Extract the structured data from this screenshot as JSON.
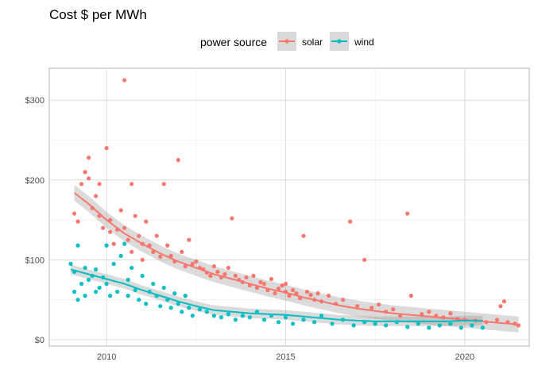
{
  "chart_data": {
    "type": "scatter",
    "title": "Cost $ per MWh",
    "xlabel": "",
    "ylabel": "",
    "xlim": [
      2008.4,
      2021.8
    ],
    "ylim": [
      -8,
      340
    ],
    "x_ticks": [
      2010,
      2015,
      2020
    ],
    "x_tick_labels": [
      "2010",
      "2015",
      "2020"
    ],
    "y_ticks": [
      0,
      100,
      200,
      300
    ],
    "y_tick_labels": [
      "$0",
      "$100",
      "$200",
      "$300"
    ],
    "grid": true,
    "legend": {
      "title": "power source",
      "position": "top"
    },
    "series": [
      {
        "name": "solar",
        "color": "#F8766D",
        "points": [
          [
            2009.1,
            158
          ],
          [
            2009.2,
            148
          ],
          [
            2009.3,
            195
          ],
          [
            2009.4,
            210
          ],
          [
            2009.5,
            228
          ],
          [
            2009.5,
            202
          ],
          [
            2009.6,
            165
          ],
          [
            2009.7,
            180
          ],
          [
            2009.8,
            195
          ],
          [
            2009.8,
            155
          ],
          [
            2009.9,
            140
          ],
          [
            2010.0,
            240
          ],
          [
            2010.1,
            135
          ],
          [
            2010.1,
            150
          ],
          [
            2010.2,
            120
          ],
          [
            2010.3,
            138
          ],
          [
            2010.4,
            162
          ],
          [
            2010.5,
            325
          ],
          [
            2010.5,
            140
          ],
          [
            2010.6,
            125
          ],
          [
            2010.7,
            195
          ],
          [
            2010.7,
            110
          ],
          [
            2010.8,
            155
          ],
          [
            2010.9,
            130
          ],
          [
            2011.0,
            120
          ],
          [
            2011.0,
            100
          ],
          [
            2011.1,
            148
          ],
          [
            2011.2,
            118
          ],
          [
            2011.3,
            110
          ],
          [
            2011.4,
            130
          ],
          [
            2011.5,
            104
          ],
          [
            2011.6,
            195
          ],
          [
            2011.7,
            118
          ],
          [
            2011.8,
            105
          ],
          [
            2011.9,
            98
          ],
          [
            2012.0,
            225
          ],
          [
            2012.1,
            110
          ],
          [
            2012.2,
            92
          ],
          [
            2012.3,
            125
          ],
          [
            2012.4,
            95
          ],
          [
            2012.5,
            98
          ],
          [
            2012.6,
            90
          ],
          [
            2012.7,
            88
          ],
          [
            2012.8,
            84
          ],
          [
            2012.9,
            80
          ],
          [
            2013.0,
            92
          ],
          [
            2013.1,
            85
          ],
          [
            2013.2,
            78
          ],
          [
            2013.3,
            82
          ],
          [
            2013.4,
            90
          ],
          [
            2013.5,
            152
          ],
          [
            2013.6,
            80
          ],
          [
            2013.7,
            75
          ],
          [
            2013.8,
            72
          ],
          [
            2013.9,
            78
          ],
          [
            2014.0,
            68
          ],
          [
            2014.1,
            80
          ],
          [
            2014.2,
            65
          ],
          [
            2014.3,
            72
          ],
          [
            2014.4,
            70
          ],
          [
            2014.5,
            62
          ],
          [
            2014.6,
            76
          ],
          [
            2014.7,
            58
          ],
          [
            2014.8,
            64
          ],
          [
            2014.9,
            68
          ],
          [
            2015.0,
            60
          ],
          [
            2015.0,
            70
          ],
          [
            2015.1,
            55
          ],
          [
            2015.2,
            62
          ],
          [
            2015.3,
            58
          ],
          [
            2015.4,
            52
          ],
          [
            2015.5,
            130
          ],
          [
            2015.6,
            60
          ],
          [
            2015.7,
            56
          ],
          [
            2015.8,
            50
          ],
          [
            2015.9,
            58
          ],
          [
            2016.0,
            48
          ],
          [
            2016.2,
            55
          ],
          [
            2016.4,
            45
          ],
          [
            2016.6,
            50
          ],
          [
            2016.8,
            148
          ],
          [
            2017.0,
            42
          ],
          [
            2017.2,
            100
          ],
          [
            2017.4,
            40
          ],
          [
            2017.6,
            44
          ],
          [
            2017.8,
            35
          ],
          [
            2018.0,
            38
          ],
          [
            2018.2,
            30
          ],
          [
            2018.4,
            158
          ],
          [
            2018.5,
            55
          ],
          [
            2018.8,
            32
          ],
          [
            2019.0,
            35
          ],
          [
            2019.2,
            30
          ],
          [
            2019.4,
            28
          ],
          [
            2019.6,
            33
          ],
          [
            2019.8,
            26
          ],
          [
            2020.0,
            25
          ],
          [
            2020.3,
            24
          ],
          [
            2020.6,
            22
          ],
          [
            2020.9,
            25
          ],
          [
            2021.0,
            42
          ],
          [
            2021.1,
            48
          ],
          [
            2021.2,
            22
          ],
          [
            2021.4,
            20
          ],
          [
            2021.5,
            18
          ]
        ]
      },
      {
        "name": "wind",
        "color": "#00BFC4",
        "points": [
          [
            2009.0,
            95
          ],
          [
            2009.1,
            60
          ],
          [
            2009.1,
            85
          ],
          [
            2009.2,
            118
          ],
          [
            2009.2,
            50
          ],
          [
            2009.3,
            70
          ],
          [
            2009.4,
            90
          ],
          [
            2009.4,
            55
          ],
          [
            2009.5,
            75
          ],
          [
            2009.6,
            80
          ],
          [
            2009.7,
            60
          ],
          [
            2009.7,
            88
          ],
          [
            2009.8,
            65
          ],
          [
            2009.9,
            78
          ],
          [
            2010.0,
            70
          ],
          [
            2010.0,
            118
          ],
          [
            2010.1,
            55
          ],
          [
            2010.2,
            95
          ],
          [
            2010.3,
            60
          ],
          [
            2010.4,
            105
          ],
          [
            2010.5,
            120
          ],
          [
            2010.6,
            75
          ],
          [
            2010.6,
            55
          ],
          [
            2010.7,
            90
          ],
          [
            2010.8,
            62
          ],
          [
            2010.9,
            50
          ],
          [
            2011.0,
            80
          ],
          [
            2011.1,
            45
          ],
          [
            2011.2,
            60
          ],
          [
            2011.3,
            70
          ],
          [
            2011.4,
            55
          ],
          [
            2011.5,
            42
          ],
          [
            2011.6,
            65
          ],
          [
            2011.7,
            50
          ],
          [
            2011.8,
            40
          ],
          [
            2011.9,
            58
          ],
          [
            2012.0,
            45
          ],
          [
            2012.1,
            35
          ],
          [
            2012.2,
            55
          ],
          [
            2012.3,
            40
          ],
          [
            2012.4,
            30
          ],
          [
            2012.6,
            38
          ],
          [
            2012.8,
            35
          ],
          [
            2013.0,
            30
          ],
          [
            2013.2,
            28
          ],
          [
            2013.4,
            32
          ],
          [
            2013.6,
            25
          ],
          [
            2013.8,
            30
          ],
          [
            2014.0,
            28
          ],
          [
            2014.2,
            35
          ],
          [
            2014.4,
            25
          ],
          [
            2014.6,
            30
          ],
          [
            2014.8,
            22
          ],
          [
            2015.0,
            28
          ],
          [
            2015.2,
            20
          ],
          [
            2015.5,
            25
          ],
          [
            2015.8,
            22
          ],
          [
            2016.0,
            30
          ],
          [
            2016.3,
            20
          ],
          [
            2016.6,
            25
          ],
          [
            2016.9,
            18
          ],
          [
            2017.2,
            22
          ],
          [
            2017.5,
            20
          ],
          [
            2017.8,
            18
          ],
          [
            2018.1,
            22
          ],
          [
            2018.4,
            16
          ],
          [
            2018.7,
            20
          ],
          [
            2019.0,
            15
          ],
          [
            2019.3,
            18
          ],
          [
            2019.6,
            20
          ],
          [
            2019.9,
            15
          ],
          [
            2020.2,
            18
          ],
          [
            2020.5,
            15
          ]
        ]
      }
    ],
    "trends": [
      {
        "name": "solar",
        "color": "#F8766D",
        "points": [
          [
            2009.1,
            184
          ],
          [
            2009.5,
            170
          ],
          [
            2010.0,
            150
          ],
          [
            2010.5,
            133
          ],
          [
            2011.0,
            120
          ],
          [
            2011.5,
            108
          ],
          [
            2012.0,
            98
          ],
          [
            2012.5,
            90
          ],
          [
            2013.0,
            82
          ],
          [
            2013.5,
            76
          ],
          [
            2014.0,
            70
          ],
          [
            2014.5,
            64
          ],
          [
            2015.0,
            59
          ],
          [
            2015.5,
            53
          ],
          [
            2016.0,
            48
          ],
          [
            2016.5,
            43
          ],
          [
            2017.0,
            39
          ],
          [
            2017.5,
            36
          ],
          [
            2018.0,
            33
          ],
          [
            2018.5,
            31
          ],
          [
            2019.0,
            29
          ],
          [
            2019.5,
            27
          ],
          [
            2020.0,
            25
          ],
          [
            2020.5,
            23
          ],
          [
            2021.0,
            21
          ],
          [
            2021.5,
            19
          ]
        ],
        "band": 10
      },
      {
        "name": "wind",
        "color": "#00BFC4",
        "points": [
          [
            2009.0,
            88
          ],
          [
            2009.5,
            82
          ],
          [
            2010.0,
            76
          ],
          [
            2010.5,
            70
          ],
          [
            2011.0,
            62
          ],
          [
            2011.5,
            55
          ],
          [
            2012.0,
            48
          ],
          [
            2012.5,
            42
          ],
          [
            2013.0,
            37
          ],
          [
            2013.5,
            35
          ],
          [
            2014.0,
            33
          ],
          [
            2014.5,
            32
          ],
          [
            2015.0,
            31
          ],
          [
            2015.5,
            29
          ],
          [
            2016.0,
            27
          ],
          [
            2016.5,
            25
          ],
          [
            2017.0,
            24
          ],
          [
            2017.5,
            23
          ],
          [
            2018.0,
            23
          ],
          [
            2018.5,
            23
          ],
          [
            2019.0,
            23
          ],
          [
            2019.5,
            23
          ],
          [
            2020.0,
            24
          ],
          [
            2020.5,
            24
          ]
        ],
        "band": 6
      }
    ]
  }
}
